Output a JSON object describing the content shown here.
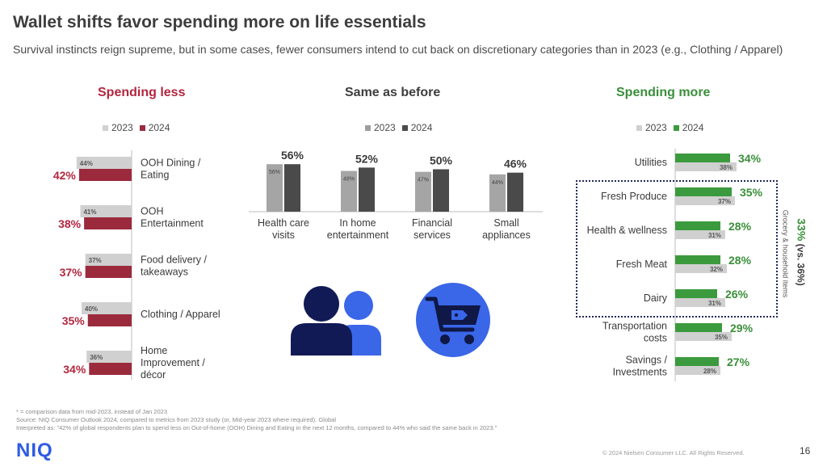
{
  "header": {
    "title": "Wallet shifts favor spending more on life essentials",
    "subtitle": "Survival instincts reign supreme, but in some cases, fewer consumers intend to cut back on discretionary categories than in 2023 (e.g., Clothing / Apparel)"
  },
  "colors": {
    "less_2024": "#9b2a3d",
    "less_head": "#b3263f",
    "same_2024": "#4a4a4a",
    "more_2024": "#3b9a3d",
    "more_head": "#3a8f3a",
    "prior_2023": "#d0d0d0",
    "icon_blue_dark": "#111a55",
    "icon_blue_light": "#3a66e8",
    "niq_blue": "#2d5be3"
  },
  "chart_data": [
    {
      "type": "bar",
      "orientation": "horizontal",
      "title": "Spending less",
      "series": [
        {
          "name": "2023"
        },
        {
          "name": "2024"
        }
      ],
      "categories": [
        "OOH Dining / Eating",
        "OOH Entertainment",
        "Food delivery / takeaways",
        "Clothing / Apparel",
        "Home Improvement / décor"
      ],
      "category_lines": [
        [
          "OOH Dining /",
          "Eating"
        ],
        [
          "OOH",
          "Entertainment"
        ],
        [
          "Food delivery /",
          "takeaways"
        ],
        [
          "Clothing / Apparel"
        ],
        [
          "Home",
          "Improvement /",
          "décor"
        ]
      ],
      "values_2023": [
        44,
        41,
        37,
        40,
        36
      ],
      "values_2024": [
        42,
        38,
        37,
        35,
        34
      ],
      "labels_2023": [
        "44%",
        "41%",
        "37%",
        "40%",
        "36%"
      ],
      "labels_2024": [
        "42%",
        "38%",
        "37%",
        "35%",
        "34%"
      ]
    },
    {
      "type": "bar",
      "orientation": "vertical",
      "title": "Same as before",
      "series": [
        {
          "name": "2023"
        },
        {
          "name": "2024"
        }
      ],
      "categories": [
        "Health care visits",
        "In home entertainment",
        "Financial services",
        "Small appliances"
      ],
      "category_lines": [
        [
          "Health care",
          "visits"
        ],
        [
          "In home",
          "entertainment"
        ],
        [
          "Financial",
          "services"
        ],
        [
          "Small",
          "appliances"
        ]
      ],
      "values_2023": [
        56,
        48,
        47,
        44
      ],
      "values_2024": [
        56,
        52,
        50,
        46
      ],
      "labels_2023": [
        "56%",
        "48%",
        "47%",
        "44%"
      ],
      "labels_2024": [
        "56%",
        "52%",
        "50%",
        "46%"
      ]
    },
    {
      "type": "bar",
      "orientation": "horizontal",
      "title": "Spending more",
      "series": [
        {
          "name": "2023"
        },
        {
          "name": "2024"
        }
      ],
      "categories": [
        "Utilities",
        "Fresh Produce",
        "Health & wellness",
        "Fresh Meat",
        "Dairy",
        "Transportation costs",
        "Savings / Investments"
      ],
      "category_lines": [
        [
          "Utilities"
        ],
        [
          "Fresh Produce"
        ],
        [
          "Health & wellness"
        ],
        [
          "Fresh Meat"
        ],
        [
          "Dairy"
        ],
        [
          "Transportation",
          "costs"
        ],
        [
          "Savings /",
          "Investments"
        ]
      ],
      "values_2023": [
        38,
        37,
        31,
        32,
        31,
        35,
        28
      ],
      "values_2024": [
        34,
        35,
        28,
        28,
        26,
        29,
        27
      ],
      "labels_2023": [
        "38%",
        "37%",
        "31%",
        "32%",
        "31%",
        "35%",
        "28%"
      ],
      "labels_2024": [
        "34%",
        "35%",
        "28%",
        "28%",
        "26%",
        "29%",
        "27%"
      ],
      "annotation": {
        "text": "Grocery & household items",
        "value": "33%",
        "value_note": "(vs. 36%)"
      }
    }
  ],
  "legend": {
    "label_2023": "2023",
    "label_2024": "2024"
  },
  "footer": {
    "note": "* = comparison data from mid-2023, instead of Jan 2023",
    "source": "Source: NIQ Consumer Outlook 2024, compared to metrics from 2023 study (or, Mid-year 2023 where required). Global",
    "interpretation": "Interpreted as: \"42% of global respondents plan to spend less on Out-of-home (OOH) Dining and Eating in the next 12 months, compared to 44% who said the same back in 2023.\"",
    "copyright": "© 2024 Nielsen Consumer LLC. All Rights Reserved.",
    "page_number": "16",
    "logo_text": "NIQ"
  },
  "icons": {
    "people": "people-icon",
    "cart": "shopping-cart-tag-icon"
  }
}
